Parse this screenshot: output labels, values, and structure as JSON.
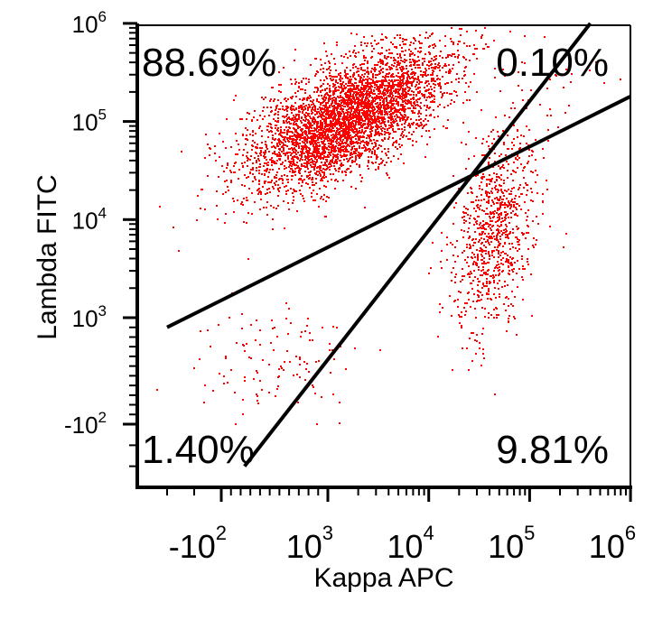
{
  "chart_data": {
    "type": "scatter",
    "title": "",
    "xlabel": "Kappa APC",
    "ylabel": "Lambda FITC",
    "x_scale": "biexponential",
    "y_scale": "biexponential",
    "x_ticks": [
      {
        "base": "-10",
        "exp": "2",
        "value": -100
      },
      {
        "base": "10",
        "exp": "3",
        "value": 1000
      },
      {
        "base": "10",
        "exp": "4",
        "value": 10000
      },
      {
        "base": "10",
        "exp": "5",
        "value": 100000
      },
      {
        "base": "10",
        "exp": "6",
        "value": 1000000
      }
    ],
    "y_ticks": [
      {
        "base": "-10",
        "exp": "2",
        "value": -100
      },
      {
        "base": "10",
        "exp": "3",
        "value": 1000
      },
      {
        "base": "10",
        "exp": "4",
        "value": 10000
      },
      {
        "base": "10",
        "exp": "5",
        "value": 100000
      },
      {
        "base": "10",
        "exp": "6",
        "value": 1000000
      }
    ],
    "point_color": "#ff0000",
    "quadrants": [
      {
        "position": "top-left",
        "label": "88.69%"
      },
      {
        "position": "top-right",
        "label": "0.10%"
      },
      {
        "position": "bottom-left",
        "label": "1.40%"
      },
      {
        "position": "bottom-right",
        "label": "9.81%"
      }
    ],
    "populations": [
      {
        "center_x": 1500,
        "center_y": 110000,
        "spread": "large",
        "share": 88.69
      },
      {
        "center_x": 45000,
        "center_y": 8000,
        "spread": "medium",
        "share": 9.81
      },
      {
        "center_x": 500,
        "center_y": 600,
        "spread": "sparse",
        "share": 1.4
      },
      {
        "center_x": 150000,
        "center_y": 300000,
        "spread": "sparse",
        "share": 0.1
      }
    ],
    "gate_lines": [
      {
        "from": [
          140,
          -300
        ],
        "to": [
          400000,
          1000000
        ]
      },
      {
        "from": [
          -300,
          900
        ],
        "to": [
          1000000,
          180000
        ]
      }
    ],
    "grid": false,
    "legend": "none"
  }
}
